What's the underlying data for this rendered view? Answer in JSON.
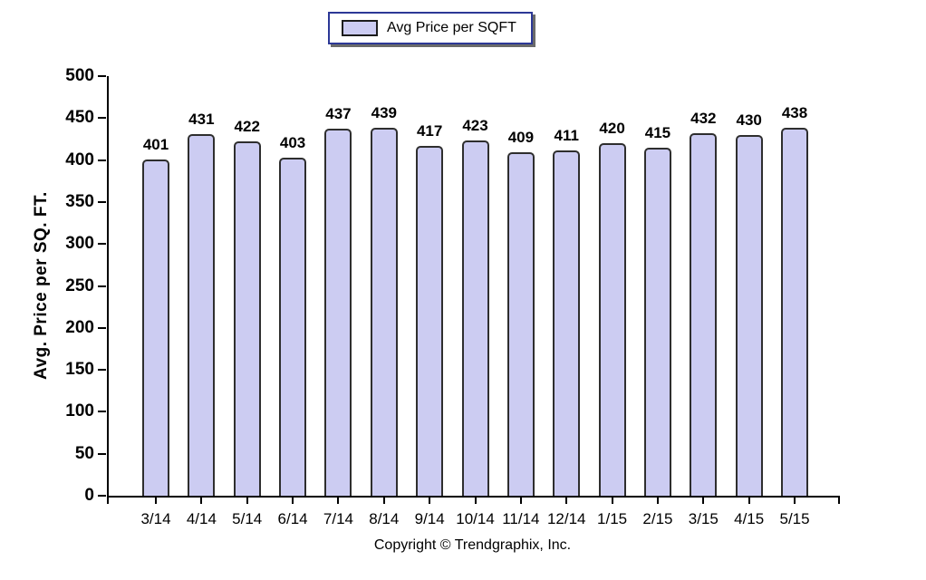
{
  "chart_data": {
    "type": "bar",
    "title": "",
    "legend": {
      "label": "Avg Price per SQFT",
      "position": "top-center"
    },
    "categories": [
      "3/14",
      "4/14",
      "5/14",
      "6/14",
      "7/14",
      "8/14",
      "9/14",
      "10/14",
      "11/14",
      "12/14",
      "1/15",
      "2/15",
      "3/15",
      "4/15",
      "5/15"
    ],
    "values": [
      401,
      431,
      422,
      403,
      437,
      439,
      417,
      423,
      409,
      411,
      420,
      415,
      432,
      430,
      438
    ],
    "xlabel": "",
    "ylabel": "Avg. Price per SQ. FT.",
    "ylim": [
      0,
      500
    ],
    "yticks": [
      0,
      50,
      100,
      150,
      200,
      250,
      300,
      350,
      400,
      450,
      500
    ],
    "grid": false,
    "data_labels": true,
    "colors": {
      "bar_fill": "#CCCCF2",
      "bar_border": "#2E2E2E",
      "axis": "#000000",
      "text": "#000000",
      "legend_border": "#2C3896"
    },
    "footer": "Copyright © Trendgraphix, Inc."
  }
}
